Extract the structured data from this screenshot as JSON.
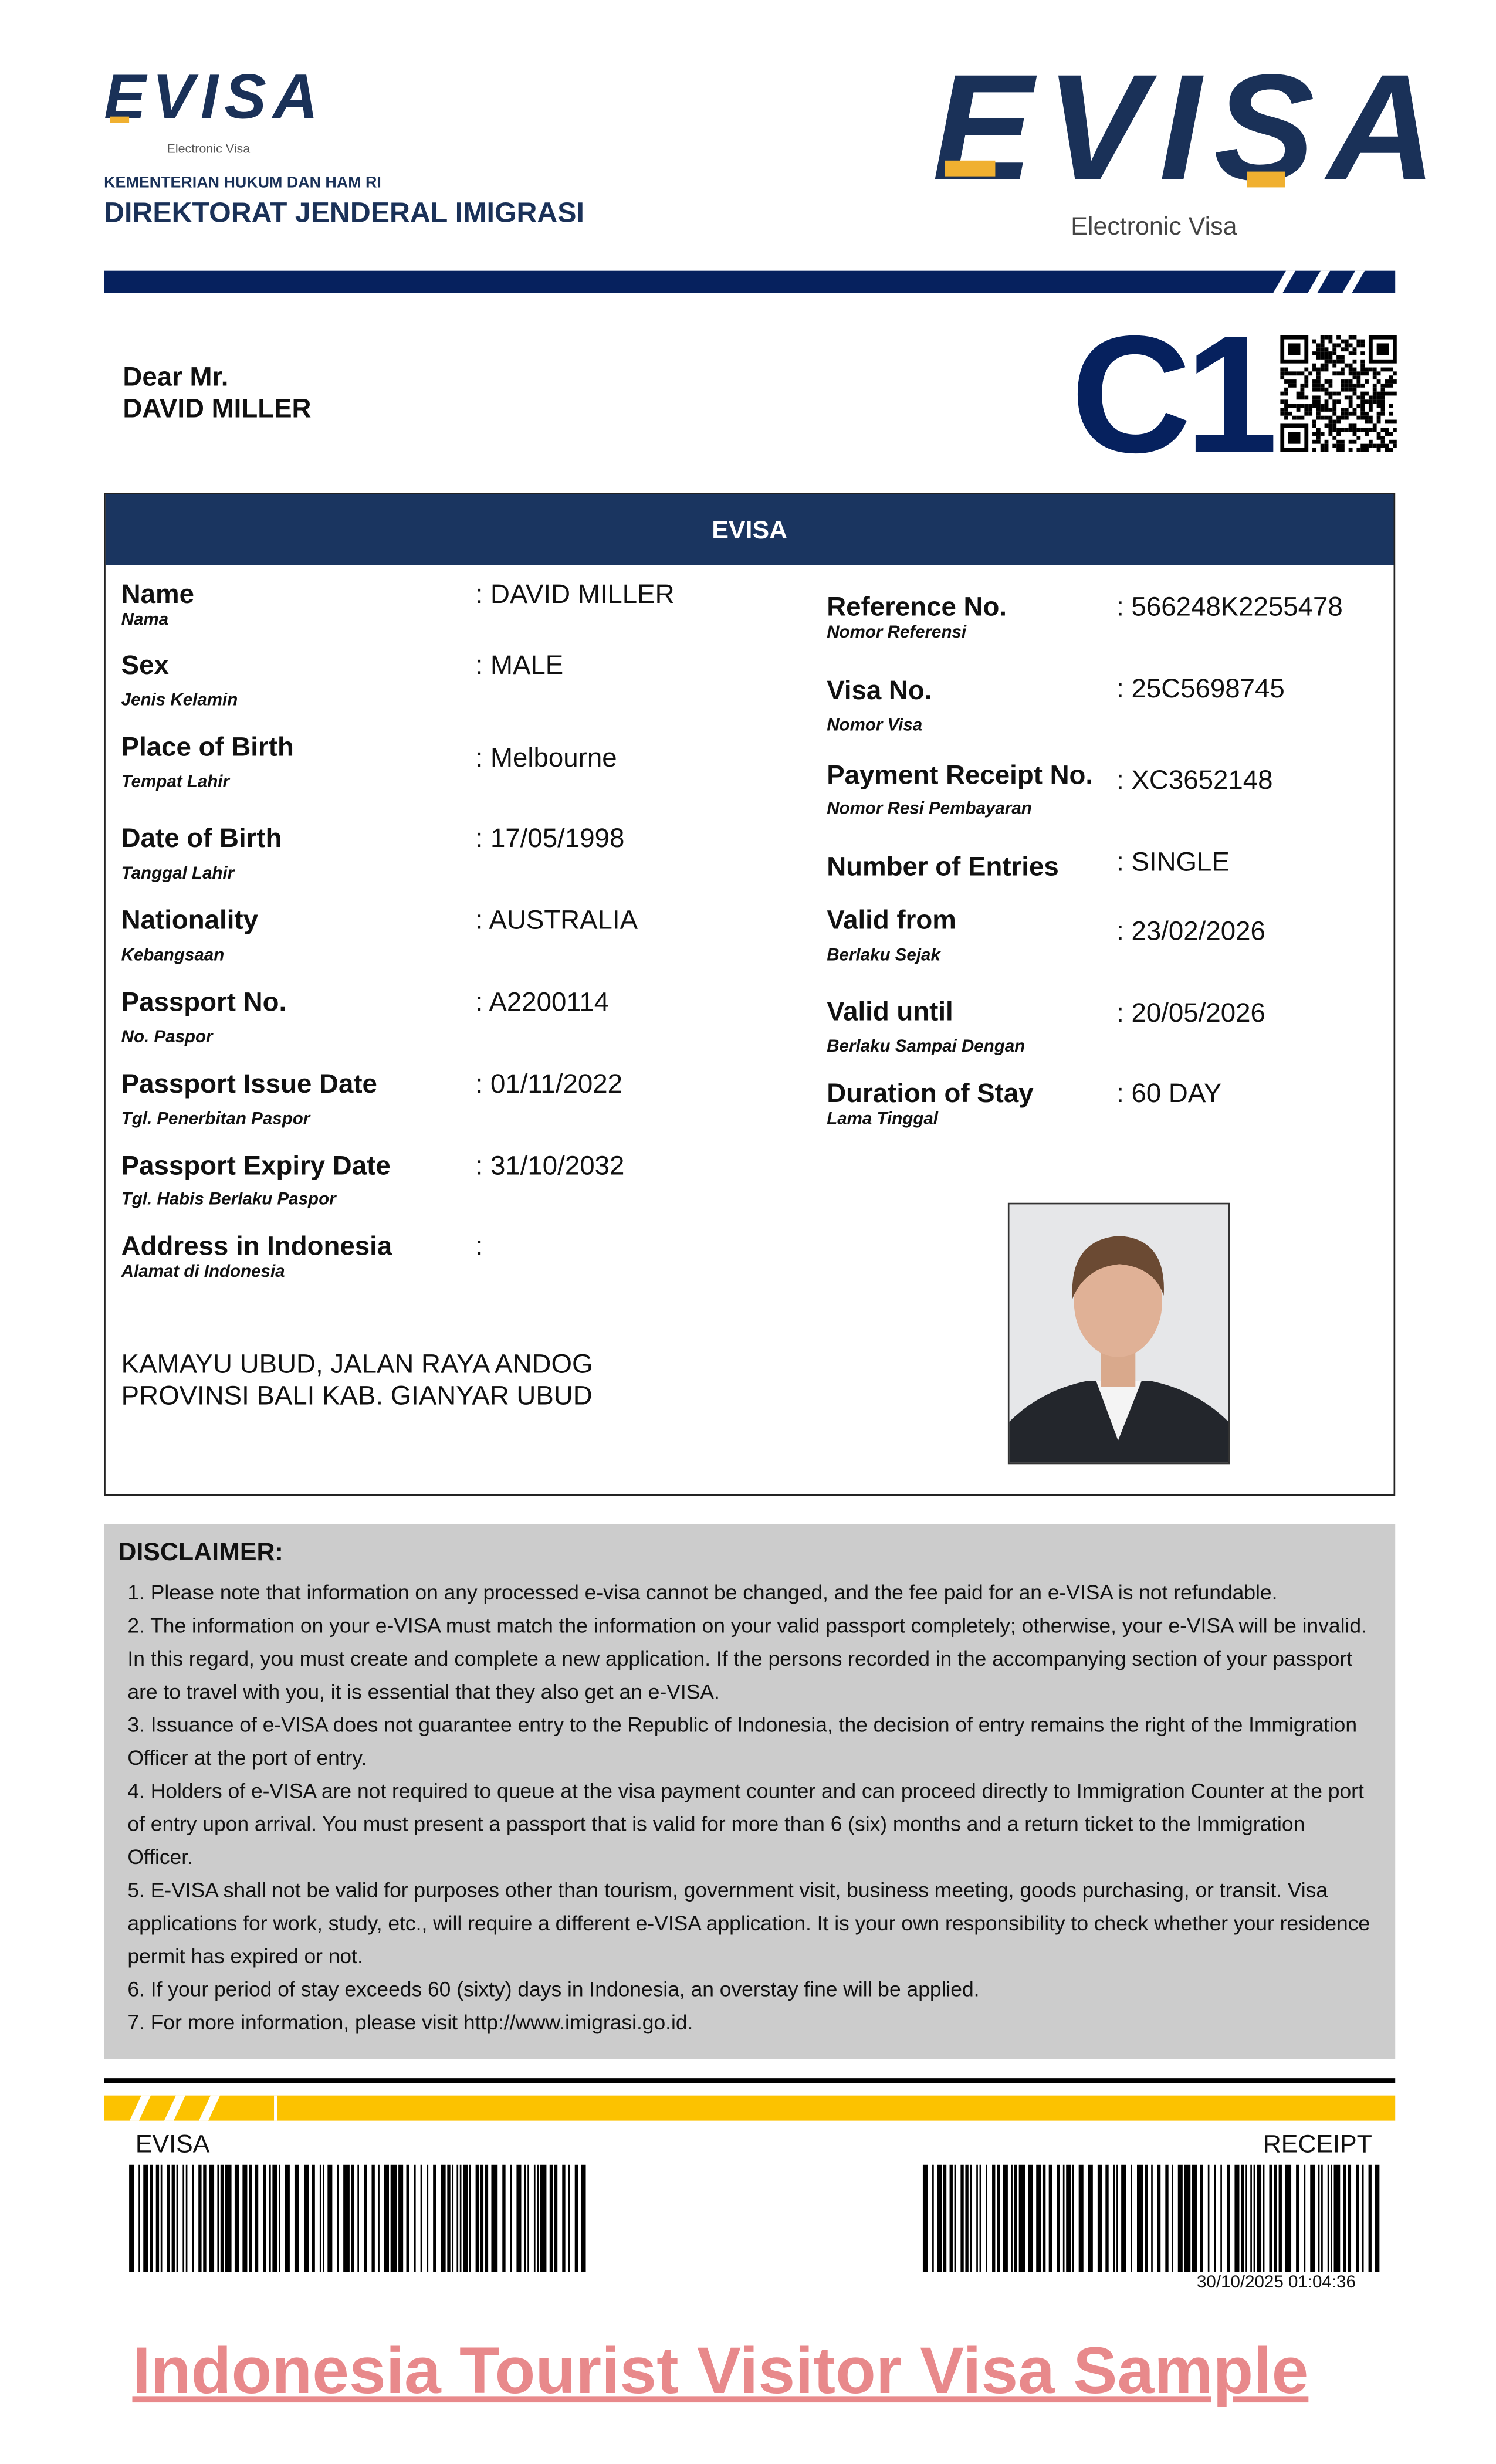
{
  "header": {
    "logo_small": "EVISA",
    "logo_small_sub": "Electronic Visa",
    "ministry": "KEMENTERIAN HUKUM DAN HAM RI",
    "directorate": "DIREKTORAT JENDERAL IMIGRASI",
    "logo_large": "EVISA",
    "logo_large_sub": "Electronic Visa"
  },
  "greeting": {
    "salutation": "Dear Mr.",
    "name": "DAVID MILLER"
  },
  "visa_type": "C1",
  "card": {
    "title": "EVISA",
    "left": [
      {
        "label": "Name",
        "sub": "Nama",
        "value": ": DAVID MILLER"
      },
      {
        "label": "Sex",
        "sub": "Jenis Kelamin",
        "value": ": MALE"
      },
      {
        "label": "Place of Birth",
        "sub": "Tempat Lahir",
        "value": ": Melbourne"
      },
      {
        "label": "Date of Birth",
        "sub": "Tanggal Lahir",
        "value": ": 17/05/1998"
      },
      {
        "label": "Nationality",
        "sub": "Kebangsaan",
        "value": ": AUSTRALIA"
      },
      {
        "label": "Passport No.",
        "sub": "No. Paspor",
        "value": ": A2200114"
      },
      {
        "label": "Passport Issue Date",
        "sub": "Tgl. Penerbitan Paspor",
        "value": ": 01/11/2022"
      },
      {
        "label": "Passport Expiry Date",
        "sub": "Tgl. Habis Berlaku Paspor",
        "value": ": 31/10/2032"
      },
      {
        "label": "Address in Indonesia",
        "sub": "Alamat di Indonesia",
        "value": ":"
      }
    ],
    "address": [
      "KAMAYU UBUD, JALAN RAYA ANDOG",
      "PROVINSI BALI KAB. GIANYAR UBUD"
    ],
    "right": [
      {
        "label": "Reference No.",
        "sub": "Nomor Referensi",
        "value": ": 566248K2255478"
      },
      {
        "label": "Visa No.",
        "sub": "Nomor Visa",
        "value": ": 25C5698745"
      },
      {
        "label": "Payment Receipt No.",
        "sub": "Nomor Resi Pembayaran",
        "value": ": XC3652148"
      },
      {
        "label": "Number of Entries",
        "sub": "",
        "value": ": SINGLE"
      },
      {
        "label": "Valid from",
        "sub": "Berlaku Sejak",
        "value": ": 23/02/2026"
      },
      {
        "label": "Valid until",
        "sub": "Berlaku Sampai Dengan",
        "value": ": 20/05/2026"
      },
      {
        "label": "Duration of Stay",
        "sub": "Lama Tinggal",
        "value": ": 60 DAY"
      }
    ]
  },
  "disclaimer": {
    "title": "DISCLAIMER:",
    "items": [
      "1.  Please note that information on any processed e-visa cannot be changed, and the fee paid for an e-VISA is not refundable.",
      "2. The information on your e-VISA must match the information on your valid passport completely; otherwise, your e-VISA will be invalid. In this regard, you must create and complete a new application. If the persons recorded in the accompanying section of your passport are to travel with you, it is essential that they also get an e-VISA.",
      "3. Issuance of e-VISA does not guarantee entry to the Republic of Indonesia, the decision of entry remains the right of the Immigration Officer at the port of entry.",
      "4. Holders of e-VISA are not required to queue at the visa payment counter and can proceed directly to Immigration Counter at the port of entry upon arrival. You must present a passport that is valid for more than 6 (six) months and a return ticket to the Immigration Officer.",
      "5. E-VISA shall not be valid for purposes other than tourism, government visit, business meeting, goods purchasing, or transit. Visa applications for work, study, etc., will require a different e-VISA application. It is your own responsibility to check whether your residence permit has expired or not.",
      "6. If your period of stay exceeds 60 (sixty) days in Indonesia, an overstay fine will be applied.",
      "7. For more information, please visit http://www.imigrasi.go.id."
    ]
  },
  "footer": {
    "evisa_label": "EVISA",
    "receipt_label": "RECEIPT",
    "timestamp": "30/10/2025 01:04:36"
  },
  "caption": "Indonesia Tourist Visitor Visa Sample",
  "colors": {
    "navy": "#1a3158",
    "yellow": "#fcc200",
    "accent": "#f0b030",
    "disclaimer_bg": "#cccccc",
    "caption": "#e8898b"
  }
}
